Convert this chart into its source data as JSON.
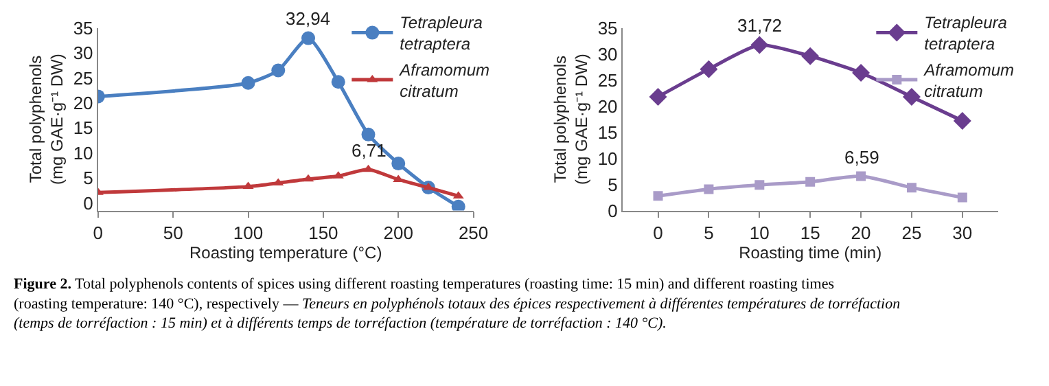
{
  "chart_data": [
    {
      "type": "line",
      "xlabel": "Roasting temperature (°C)",
      "ylabel": "Total polyphenols\n(mg GAE·g⁻¹ DW)",
      "x": [
        0,
        100,
        120,
        140,
        160,
        180,
        200,
        220,
        240
      ],
      "series": [
        {
          "name": "Tetrapleura\ntetraptera",
          "color": "#4a7fc1",
          "marker": "circle",
          "values": [
            21.3,
            24.0,
            26.5,
            32.94,
            24.2,
            13.7,
            7.9,
            3.1,
            -0.7
          ]
        },
        {
          "name": "Aframomum\ncitratum",
          "color": "#c0393b",
          "marker": "triangle",
          "values": [
            2.1,
            3.3,
            4.0,
            4.8,
            5.4,
            6.71,
            4.7,
            3.1,
            1.4
          ]
        }
      ],
      "xlim": [
        0,
        250
      ],
      "xticks": [
        0,
        50,
        100,
        150,
        200,
        250
      ],
      "ylim": [
        -1.5,
        35
      ],
      "yticks": [
        0,
        5,
        10,
        15,
        20,
        25,
        30,
        35
      ],
      "annotations": [
        {
          "text": "32,94",
          "x": 140,
          "y": 32.94
        },
        {
          "text": "6,71",
          "x": 180,
          "y": 6.71
        },
        "Figure 2.",
        "Total polyphenols contents of spices using different roasting temperatures (roasting time: 15 min) and different roasting times (roasting temperature: 140 °C), respectively —",
        "Teneurs en polyphénols totaux des épices respectivement à différentes températures de torréfaction (temps de torréfaction : 15 min) et à différents temps de torréfaction (température de torréfaction : 140 °C)."
      ],
      "legend": "top right"
    },
    {
      "type": "line",
      "xlabel": "Roasting time (min)",
      "ylabel": "Total polyphenols\n(mg GAE·g⁻¹ DW)",
      "x": [
        0,
        5,
        10,
        15,
        20,
        25,
        30
      ],
      "series": [
        {
          "name": "Tetrapleura\ntetraptera",
          "color": "#6a3d8f",
          "marker": "diamond",
          "values": [
            21.8,
            27.1,
            31.72,
            29.6,
            26.4,
            21.8,
            17.2
          ]
        },
        {
          "name": "Aframomum\ncitratum",
          "color": "#a99bc8",
          "marker": "square",
          "values": [
            2.8,
            4.1,
            4.9,
            5.5,
            6.59,
            4.4,
            2.5
          ]
        }
      ],
      "xlim": [
        -3.5,
        33.5
      ],
      "xticks": [
        0,
        5,
        10,
        15,
        20,
        25,
        30
      ],
      "ylim": [
        0,
        35
      ],
      "yticks": [
        0,
        5,
        10,
        15,
        20,
        25,
        30,
        35
      ],
      "annotations": [
        {
          "text": "31,72",
          "x": 10,
          "y": 31.72
        },
        {
          "text": "6,59",
          "x": 20,
          "y": 6.59
        }
      ],
      "legend": "top right"
    }
  ]
}
